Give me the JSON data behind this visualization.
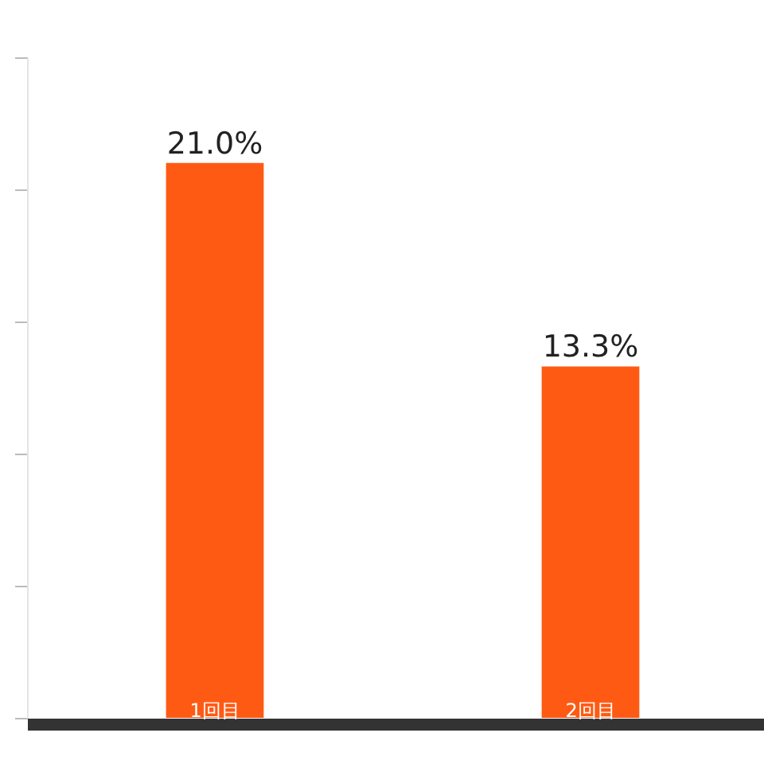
{
  "chart_data": {
    "type": "bar",
    "categories": [
      "1回目",
      "2回目"
    ],
    "values": [
      21.0,
      13.3
    ],
    "color": "#ff5a14",
    "ylim": [
      0,
      25
    ],
    "yticks": [
      {
        "value": 0,
        "label": null
      },
      {
        "value": 5,
        "label": null
      },
      {
        "value": 10,
        "label": null
      },
      {
        "value": 15,
        "label": null
      },
      {
        "value": 20,
        "label": null
      },
      {
        "value": 25,
        "label": null
      }
    ],
    "data_labels": true,
    "value_labels": [
      "21.0%",
      "13.3%"
    ],
    "tick_labels": "x"
  }
}
